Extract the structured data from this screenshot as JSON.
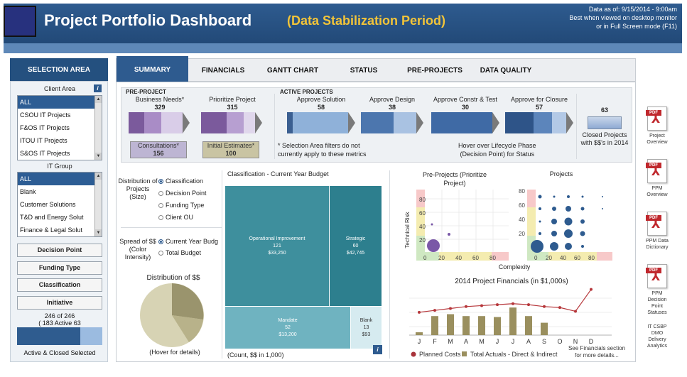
{
  "header": {
    "title": "Project Portfolio Dashboard",
    "subtitle": "(Data Stabilization Period)",
    "as_of": "Data as of: 9/15/2014 - 9:00am",
    "note1": "Best when viewed on desktop monitor",
    "note2": "or in Full Screen mode (F11)"
  },
  "selection": {
    "title": "SELECTION AREA",
    "client_area_label": "Client Area",
    "client_area_items": [
      "ALL",
      "CSOU IT Projects",
      "F&OS IT Projects",
      "ITOU IT Projects",
      "S&OS IT Projects"
    ],
    "it_group_label": "IT Group",
    "it_group_items": [
      "ALL",
      "Blank",
      "Customer Solutions",
      "T&D and Energy Solut",
      "Finance & Legal Solut"
    ],
    "buttons": [
      "Decision Point",
      "Funding Type",
      "Classification",
      "Initiative"
    ],
    "count_line1": "246 of 246",
    "count_line2": "( 183 Active 63",
    "bar_label": "Active & Closed Selected",
    "active_fraction": 0.74
  },
  "tabs": [
    "SUMMARY",
    "FINANCIALS",
    "GANTT CHART",
    "STATUS",
    "PRE-PROJECTS",
    "DATA QUALITY"
  ],
  "pipeline": {
    "pre_project_label": "PRE-PROJECT",
    "active_projects_label": "ACTIVE PROJECTS",
    "stages": [
      {
        "label": "Business Needs*",
        "value": "329"
      },
      {
        "label": "Prioritize Project",
        "value": "315"
      },
      {
        "label": "Approve Solution",
        "value": "58"
      },
      {
        "label": "Approve Design",
        "value": "38"
      },
      {
        "label": "Approve Constr & Test",
        "value": "30"
      },
      {
        "label": "Approve for Closure",
        "value": "57"
      }
    ],
    "consultations_label": "Consultations*",
    "consultations_value": "156",
    "initial_estimates_label": "Initial Estimates*",
    "initial_estimates_value": "100",
    "note_a1": "* Selection Area filters do not",
    "note_a2": "currently apply to these metrics",
    "note_b1": "Hover over Lifecycle Phase",
    "note_b2": "(Decision Point) for Status",
    "closed_value": "63",
    "closed_label1": "Closed Projects",
    "closed_label2": "with $$'s in 2014"
  },
  "controls": {
    "distribution_label": "Distribution of Projects (Size)",
    "distribution_options": [
      "Classification",
      "Decision Point",
      "Funding Type",
      "Client OU"
    ],
    "spread_label": "Spread of $$ (Color Intensity)",
    "spread_options": [
      "Current Year Budg",
      "Total Budget"
    ],
    "dist_dollars_title": "Distribution of $$",
    "hover_note": "(Hover for details)"
  },
  "treemap": {
    "title": "Classification - Current Year Budget",
    "footer": "(Count, $$ in 1,000)",
    "cells": [
      {
        "name": "Operational Improvement",
        "count": "121",
        "budget": "$33,250"
      },
      {
        "name": "Strategic",
        "count": "60",
        "budget": "$42,745"
      },
      {
        "name": "Mandate",
        "count": "52",
        "budget": "$13,200"
      },
      {
        "name": "Blank",
        "count": "13",
        "budget": "$93"
      }
    ]
  },
  "pre_projects_chart": {
    "title": "Pre-Projects (Prioritize Project)",
    "ylabel": "Technical Risk",
    "ticks": [
      "0",
      "20",
      "40",
      "60",
      "80"
    ]
  },
  "projects_chart": {
    "title": "Projects",
    "xlabel": "Complexity",
    "ticks": [
      "0",
      "20",
      "40",
      "60",
      "80"
    ]
  },
  "chart_data": {
    "type": "bar",
    "title": "2014 Project Financials (in $1,000s)",
    "categories": [
      "J",
      "F",
      "M",
      "A",
      "M",
      "J",
      "J",
      "A",
      "S",
      "O",
      "N",
      "D"
    ],
    "series": [
      {
        "name": "Planned Costs",
        "type": "line",
        "values": [
          2.4,
          2.6,
          2.8,
          3.0,
          3.1,
          3.2,
          3.3,
          3.2,
          3.0,
          2.9,
          2.5,
          4.8
        ]
      },
      {
        "name": "Total Actuals - Direct & Indirect",
        "type": "bar",
        "values": [
          0.3,
          2.0,
          2.2,
          2.0,
          2.0,
          1.9,
          2.9,
          2.0,
          1.3,
          0,
          0,
          0
        ]
      }
    ],
    "ylim": [
      0,
      5
    ]
  },
  "financials_note1": "See Financials section",
  "financials_note2": "for more details...",
  "sidebar": [
    {
      "line1": "Project",
      "line2": "Overview"
    },
    {
      "line1": "PPM",
      "line2": "Overview"
    },
    {
      "line1": "PPM Data",
      "line2": "Dictionary"
    },
    {
      "line1": "PPM Decision",
      "line2": "Point Statuses"
    }
  ],
  "pdf_tag": "PDF",
  "itcsbp": {
    "line1": "IT CSBP",
    "line2": "DMO",
    "line3": "Delivery",
    "line4": "Analytics"
  },
  "colors": {
    "header": "#2e5b8f",
    "accent": "#f2c439",
    "teal": "#3e8f9d",
    "pre_project": "#7b5a9c",
    "active": "#4c76ae"
  }
}
